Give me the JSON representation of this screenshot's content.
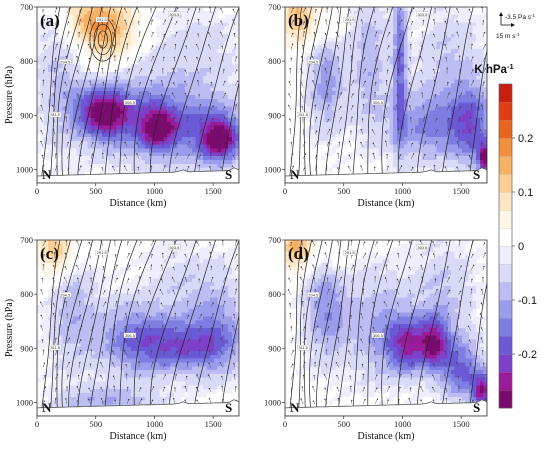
{
  "chart_data": {
    "type": "heatmap",
    "quantity_unit": "K hPa",
    "quantity_unit_exponent": "-1",
    "colorbar": {
      "ticks": [
        "0.2",
        "0.1",
        "0",
        "-0.1",
        "-0.2"
      ],
      "range": [
        -0.3,
        0.3
      ],
      "colors": [
        "#7a0a6e",
        "#9a1b9a",
        "#7e3fc9",
        "#6a5ad6",
        "#7d7de2",
        "#9c9cec",
        "#bcbdf3",
        "#d9daf8",
        "#eeeefc",
        "#ffffff",
        "#fff6e8",
        "#fde6c4",
        "#fbcf94",
        "#f6b165",
        "#f18f3e",
        "#e9641f",
        "#e03d12",
        "#c81e10"
      ]
    },
    "reference_vector": {
      "vertical_label": "-3.5 Pa s",
      "vertical_exp": "-1",
      "horizontal_label": "15 m s",
      "horizontal_exp": "-1"
    },
    "panels": [
      {
        "label": "(a)",
        "xlabel": "Distance (km)",
        "ylabel": "Pressure (hPa)",
        "xticks": [
          "0",
          "500",
          "1000",
          "1500"
        ],
        "yticks": [
          "700",
          "800",
          "900",
          "1000"
        ],
        "xlim": [
          0,
          1720
        ],
        "ylim": [
          1025,
          700
        ],
        "left_end": "N",
        "right_end": "S",
        "blobs": [
          {
            "x": 600,
            "p": 742,
            "v": 0.16,
            "sx": 180,
            "sp": 45
          },
          {
            "x": 380,
            "p": 715,
            "v": 0.08,
            "sx": 130,
            "sp": 30
          },
          {
            "x": 560,
            "p": 895,
            "v": -0.24,
            "sx": 160,
            "sp": 32
          },
          {
            "x": 1030,
            "p": 925,
            "v": -0.19,
            "sx": 110,
            "sp": 28
          },
          {
            "x": 1560,
            "p": 945,
            "v": -0.24,
            "sx": 120,
            "sp": 30
          },
          {
            "x": 820,
            "p": 900,
            "v": -0.11,
            "sx": 300,
            "sp": 60
          },
          {
            "x": 1350,
            "p": 920,
            "v": -0.12,
            "sx": 300,
            "sp": 50
          },
          {
            "x": 200,
            "p": 830,
            "v": -0.07,
            "sx": 150,
            "sp": 90
          },
          {
            "x": 1350,
            "p": 780,
            "v": -0.05,
            "sx": 300,
            "sp": 60
          }
        ],
        "contour_labels": [
          "291.5",
          "294.5",
          "303.5",
          "306.5",
          "311.5"
        ]
      },
      {
        "label": "(b)",
        "xlabel": "Distance (km)",
        "ylabel": "",
        "xticks": [
          "0",
          "500",
          "1000",
          "1500"
        ],
        "yticks": [
          "700",
          "800",
          "900",
          "1000"
        ],
        "xlim": [
          0,
          1720
        ],
        "ylim": [
          1025,
          700
        ],
        "left_end": "N",
        "right_end": "S",
        "blobs": [
          {
            "x": 120,
            "p": 720,
            "v": 0.14,
            "sx": 110,
            "sp": 35
          },
          {
            "x": 380,
            "p": 725,
            "v": 0.06,
            "sx": 90,
            "sp": 40
          },
          {
            "x": 350,
            "p": 830,
            "v": -0.12,
            "sx": 110,
            "sp": 70
          },
          {
            "x": 720,
            "p": 800,
            "v": -0.09,
            "sx": 120,
            "sp": 90
          },
          {
            "x": 980,
            "p": 800,
            "v": -0.16,
            "sx": 40,
            "sp": 110
          },
          {
            "x": 1250,
            "p": 920,
            "v": -0.14,
            "sx": 260,
            "sp": 45
          },
          {
            "x": 1600,
            "p": 920,
            "v": -0.14,
            "sx": 120,
            "sp": 55
          },
          {
            "x": 1700,
            "p": 980,
            "v": -0.25,
            "sx": 40,
            "sp": 20
          },
          {
            "x": 1400,
            "p": 800,
            "v": -0.07,
            "sx": 200,
            "sp": 70
          }
        ],
        "contour_labels": [
          "291.5",
          "294.5",
          "303.5",
          "306.5",
          "311.5"
        ]
      },
      {
        "label": "(c)",
        "xlabel": "Distance (km)",
        "ylabel": "Pressure (hPa)",
        "xticks": [
          "0",
          "500",
          "1000",
          "1500"
        ],
        "yticks": [
          "700",
          "800",
          "900",
          "1000"
        ],
        "xlim": [
          0,
          1720
        ],
        "ylim": [
          1025,
          700
        ],
        "left_end": "N",
        "right_end": "S",
        "blobs": [
          {
            "x": 170,
            "p": 720,
            "v": 0.14,
            "sx": 120,
            "sp": 35
          },
          {
            "x": 300,
            "p": 830,
            "v": -0.09,
            "sx": 140,
            "sp": 80
          },
          {
            "x": 1250,
            "p": 895,
            "v": -0.18,
            "sx": 300,
            "sp": 35
          },
          {
            "x": 800,
            "p": 880,
            "v": -0.12,
            "sx": 220,
            "sp": 50
          },
          {
            "x": 1550,
            "p": 850,
            "v": -0.09,
            "sx": 160,
            "sp": 70
          },
          {
            "x": 600,
            "p": 1000,
            "v": -0.1,
            "sx": 300,
            "sp": 20
          },
          {
            "x": 1200,
            "p": 780,
            "v": -0.05,
            "sx": 200,
            "sp": 50
          }
        ],
        "contour_labels": [
          "291.5",
          "294.5",
          "303.5",
          "306.5",
          "311.5"
        ]
      },
      {
        "label": "(d)",
        "xlabel": "Distance (km)",
        "ylabel": "",
        "xticks": [
          "0",
          "500",
          "1000",
          "1500"
        ],
        "yticks": [
          "700",
          "800",
          "900",
          "1000"
        ],
        "xlim": [
          0,
          1720
        ],
        "ylim": [
          1025,
          700
        ],
        "left_end": "N",
        "right_end": "S",
        "blobs": [
          {
            "x": 110,
            "p": 715,
            "v": 0.15,
            "sx": 110,
            "sp": 30
          },
          {
            "x": 430,
            "p": 730,
            "v": 0.05,
            "sx": 90,
            "sp": 40
          },
          {
            "x": 350,
            "p": 820,
            "v": -0.13,
            "sx": 130,
            "sp": 70
          },
          {
            "x": 1050,
            "p": 895,
            "v": -0.2,
            "sx": 130,
            "sp": 35
          },
          {
            "x": 1280,
            "p": 890,
            "v": -0.2,
            "sx": 90,
            "sp": 35
          },
          {
            "x": 1500,
            "p": 940,
            "v": -0.17,
            "sx": 120,
            "sp": 40
          },
          {
            "x": 1680,
            "p": 980,
            "v": -0.24,
            "sx": 60,
            "sp": 25
          },
          {
            "x": 800,
            "p": 860,
            "v": -0.1,
            "sx": 200,
            "sp": 70
          },
          {
            "x": 1350,
            "p": 800,
            "v": -0.07,
            "sx": 200,
            "sp": 70
          }
        ],
        "contour_labels": [
          "291.5",
          "294.5",
          "303.5",
          "306.5",
          "311.5"
        ]
      }
    ]
  }
}
